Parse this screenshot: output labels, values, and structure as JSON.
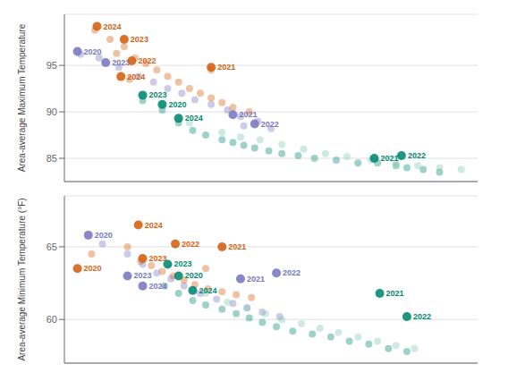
{
  "chart_data": [
    {
      "type": "scatter",
      "ylabel": "Area-average Maximum Temperature",
      "xlim": [
        0.0,
        3.8
      ],
      "ylim": [
        82.5,
        100.5
      ],
      "yticks": [
        85,
        90,
        95
      ],
      "grid": true,
      "tick_labels": "y",
      "series": [
        {
          "color": "#D45F10",
          "x": [
            0.28,
            0.42,
            0.55,
            0.48,
            0.65,
            0.75,
            0.85,
            0.95,
            1.05,
            1.15,
            1.25,
            1.35,
            1.45,
            1.55,
            1.7,
            1.35,
            0.6
          ],
          "values": [
            98.8,
            97.8,
            97.0,
            96.3,
            95.8,
            95.2,
            94.5,
            93.8,
            93.2,
            92.5,
            92.0,
            91.5,
            91.0,
            90.5,
            90.0,
            94.5,
            93.5
          ]
        },
        {
          "color": "#7878C0",
          "x": [
            0.15,
            0.32,
            0.5,
            0.68,
            0.82,
            0.95,
            1.08,
            1.2,
            1.35,
            1.5,
            1.62,
            1.78,
            1.65,
            1.9
          ],
          "values": [
            96.2,
            95.8,
            94.8,
            93.8,
            93.2,
            92.5,
            92.0,
            91.3,
            90.8,
            90.2,
            89.5,
            89.0,
            88.5,
            88.2
          ]
        },
        {
          "color": "#008870",
          "x": [
            0.72,
            0.9,
            1.05,
            1.18,
            1.3,
            1.45,
            1.55,
            1.65,
            1.75,
            1.88,
            2.0,
            2.15,
            2.3,
            2.5,
            2.7,
            2.88,
            3.05,
            3.15,
            3.3,
            3.45
          ],
          "values": [
            91.2,
            90.2,
            88.8,
            88.0,
            87.5,
            87.0,
            86.7,
            86.4,
            86.1,
            85.8,
            85.5,
            85.3,
            85.0,
            84.8,
            84.5,
            84.5,
            84.2,
            84.0,
            83.8,
            83.5
          ]
        },
        {
          "color": "#80C8B0",
          "x": [
            1.15,
            1.45,
            1.62,
            1.8,
            2.0,
            2.2,
            2.4,
            2.6,
            2.82,
            3.05,
            3.25,
            3.45,
            3.65
          ],
          "values": [
            88.8,
            87.8,
            87.3,
            87.0,
            86.5,
            86.0,
            85.5,
            85.2,
            84.8,
            84.5,
            84.2,
            84.0,
            83.8
          ]
        },
        {
          "x": [
            0.3,
            0.55,
            0.12,
            0.38,
            0.62,
            0.52,
            1.35,
            0.72,
            0.9,
            1.05,
            1.55,
            1.75,
            2.85,
            3.1
          ],
          "values": [
            99.2,
            97.8,
            96.5,
            95.3,
            95.5,
            93.8,
            94.8,
            91.8,
            90.8,
            89.3,
            89.7,
            88.7,
            85.0,
            85.3
          ],
          "labels": [
            "2024",
            "2023",
            "2020",
            "2023",
            "2022",
            "2024",
            "2021",
            "2023",
            "2020",
            "2024",
            "2021",
            "2022",
            "2021",
            "2022"
          ],
          "colors": [
            "#D45F10",
            "#D45F10",
            "#7878C0",
            "#7878C0",
            "#D45F10",
            "#D45F10",
            "#D45F10",
            "#008870",
            "#008870",
            "#008870",
            "#7878C0",
            "#7878C0",
            "#008870",
            "#008870"
          ]
        }
      ]
    },
    {
      "type": "scatter",
      "ylabel": "Area-average Minimum Temperature (°F)",
      "xlim": [
        0.0,
        3.8
      ],
      "ylim": [
        57.0,
        68.5
      ],
      "yticks": [
        60,
        65
      ],
      "grid": true,
      "tick_labels": "y",
      "series": [
        {
          "color": "#D45F10",
          "x": [
            0.25,
            0.58,
            0.7,
            0.8,
            0.9,
            1.0,
            1.1,
            1.2,
            1.32,
            1.45,
            1.58,
            1.72,
            1.3
          ],
          "values": [
            64.5,
            65.0,
            64.0,
            63.7,
            63.3,
            63.0,
            62.7,
            62.4,
            62.1,
            61.9,
            61.7,
            61.5,
            63.5
          ]
        },
        {
          "color": "#7878C0",
          "x": [
            0.35,
            0.58,
            0.72,
            0.85,
            0.98,
            1.1,
            1.25,
            1.4,
            1.55,
            1.68,
            1.82,
            1.98
          ],
          "values": [
            65.2,
            64.5,
            63.8,
            63.2,
            62.8,
            62.3,
            61.8,
            61.4,
            61.1,
            60.8,
            60.5,
            60.2
          ]
        },
        {
          "color": "#008870",
          "x": [
            0.92,
            1.05,
            1.18,
            1.3,
            1.45,
            1.58,
            1.7,
            1.82,
            1.95,
            2.1,
            2.28,
            2.45,
            2.62,
            2.8,
            2.98,
            3.15
          ],
          "values": [
            62.3,
            61.8,
            61.3,
            61.0,
            60.7,
            60.4,
            60.1,
            59.8,
            59.5,
            59.2,
            59.0,
            58.8,
            58.5,
            58.3,
            58.0,
            57.8
          ]
        },
        {
          "color": "#80C8B0",
          "x": [
            1.3,
            1.5,
            1.68,
            1.85,
            2.0,
            2.18,
            2.35,
            2.52,
            2.7,
            2.88,
            3.05,
            3.22
          ],
          "values": [
            61.8,
            61.2,
            60.8,
            60.4,
            60.0,
            59.7,
            59.4,
            59.1,
            58.8,
            58.5,
            58.2,
            58.0
          ]
        },
        {
          "x": [
            0.12,
            0.22,
            0.68,
            0.72,
            0.58,
            0.72,
            1.02,
            0.95,
            1.05,
            1.18,
            1.45,
            1.62,
            1.95,
            2.9,
            3.15
          ],
          "values": [
            63.5,
            65.8,
            66.5,
            64.2,
            63.0,
            62.3,
            65.2,
            63.8,
            63.0,
            62.0,
            65.0,
            62.8,
            63.2,
            61.8,
            60.2
          ],
          "labels": [
            "2020",
            "2020",
            "2024",
            "2023",
            "2023",
            "2024",
            "2022",
            "2023",
            "2020",
            "2024",
            "2021",
            "2021",
            "2022",
            "2021",
            "2022"
          ],
          "colors": [
            "#D45F10",
            "#7878C0",
            "#D45F10",
            "#D45F10",
            "#7878C0",
            "#7878C0",
            "#D45F10",
            "#008870",
            "#008870",
            "#008870",
            "#D45F10",
            "#7878C0",
            "#7878C0",
            "#008870",
            "#008870"
          ]
        }
      ]
    }
  ]
}
